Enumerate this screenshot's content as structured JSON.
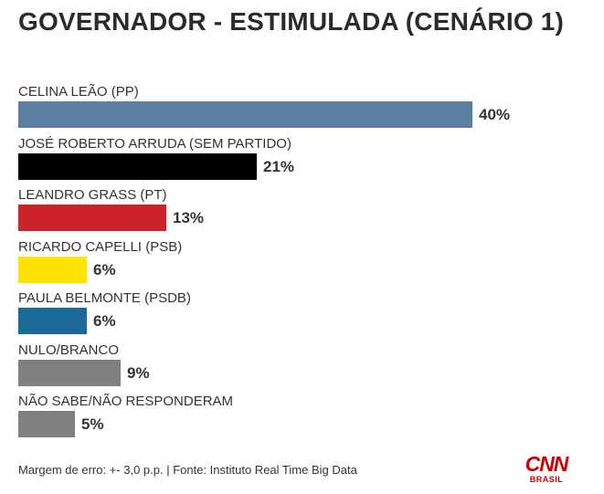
{
  "chart_data": {
    "type": "bar",
    "orientation": "horizontal",
    "title": "GOVERNADOR - ESTIMULADA (CENÁRIO 1)",
    "xlim": [
      0,
      40
    ],
    "grid": false,
    "categories": [
      "CELINA LEÃO (PP)",
      "JOSÉ ROBERTO ARRUDA (SEM PARTIDO)",
      "LEANDRO GRASS (PT)",
      "RICARDO CAPELLI (PSB)",
      "PAULA BELMONTE (PSDB)",
      "NULO/BRANCO",
      "NÃO SABE/NÃO RESPONDERAM"
    ],
    "values": [
      40,
      21,
      13,
      6,
      6,
      9,
      5
    ],
    "value_labels": [
      "40%",
      "21%",
      "13%",
      "6%",
      "6%",
      "9%",
      "5%"
    ],
    "colors": [
      "#5a7fa0",
      "#000000",
      "#cc2229",
      "#ffe200",
      "#1a6a97",
      "#808080",
      "#808080"
    ]
  },
  "footer": "Margem de erro: +- 3,0 p.p. | Fonte: Instituto Real Time Big Data",
  "logo": {
    "name": "CNN",
    "subtitle": "BRASIL",
    "color": "#cc0000"
  }
}
